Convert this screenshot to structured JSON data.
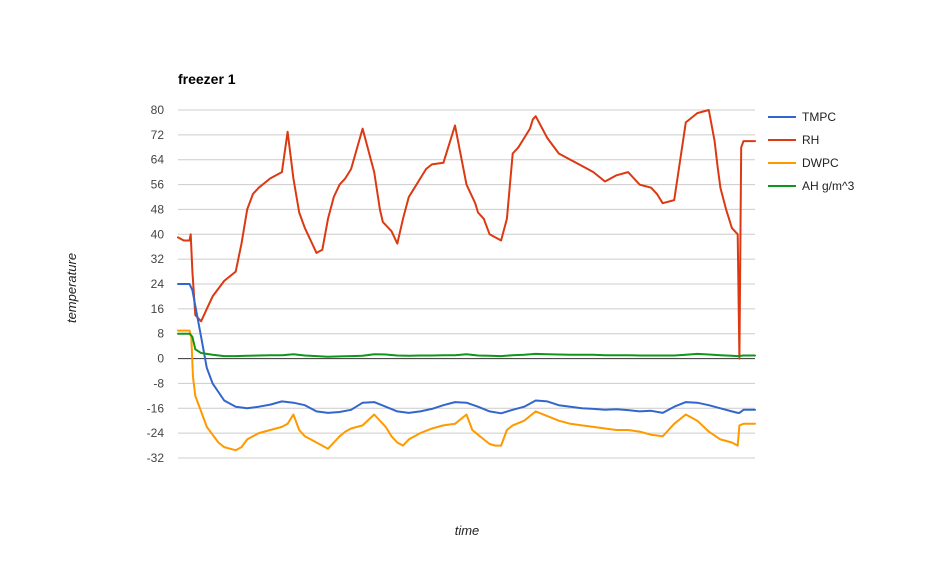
{
  "chart_data": {
    "type": "line",
    "title": "freezer 1",
    "xlabel": "time",
    "ylabel": "temperature",
    "ylim": [
      -32,
      80
    ],
    "yticks": [
      80,
      72,
      64,
      56,
      48,
      40,
      32,
      24,
      16,
      8,
      0,
      -8,
      -16,
      -24,
      -32
    ],
    "grid": true,
    "legend_position": "right",
    "series": [
      {
        "name": "TMPC",
        "color": "#3366cc",
        "x": [
          0,
          1,
          2,
          2.5,
          3,
          4,
          5,
          6,
          8,
          10,
          12,
          14,
          16,
          18,
          20,
          22,
          24,
          26,
          28,
          30,
          32,
          34,
          36,
          38,
          40,
          42,
          44,
          46,
          48,
          50,
          52,
          54,
          56,
          58,
          60,
          62,
          64,
          66,
          68,
          70,
          72,
          74,
          76,
          78,
          80,
          82,
          84,
          86,
          88,
          90,
          92,
          94,
          96,
          97,
          97.3,
          98,
          100
        ],
        "y": [
          24,
          24,
          24,
          22,
          17,
          7,
          -3,
          -8,
          -13.5,
          -15.5,
          -16,
          -15.5,
          -14.8,
          -13.8,
          -14.2,
          -15,
          -17,
          -17.5,
          -17.2,
          -16.5,
          -14.2,
          -14,
          -15.5,
          -17,
          -17.5,
          -17,
          -16.2,
          -15,
          -14,
          -14.2,
          -15.5,
          -17,
          -17.6,
          -16.5,
          -15.5,
          -13.5,
          -13.8,
          -15,
          -15.5,
          -16,
          -16.2,
          -16.5,
          -16.3,
          -16.6,
          -17,
          -16.8,
          -17.5,
          -15.5,
          -14,
          -14.2,
          -15,
          -16,
          -17,
          -17.5,
          -17.5,
          -16.5,
          -16.5
        ]
      },
      {
        "name": "RH",
        "color": "#dc3912",
        "x": [
          0,
          1,
          2,
          2.2,
          2.5,
          3,
          4,
          5,
          6,
          8,
          10,
          11,
          12,
          13,
          14,
          16,
          18,
          19,
          20,
          21,
          22,
          23,
          24,
          25,
          26,
          27,
          28,
          29,
          30,
          32,
          34,
          35,
          35.5,
          36,
          37,
          38,
          39,
          40,
          41,
          42,
          43,
          44,
          46,
          48,
          50,
          51,
          51.5,
          52,
          53,
          54,
          56,
          57,
          58,
          59,
          60,
          61,
          61.5,
          62,
          64,
          66,
          68,
          70,
          72,
          74,
          76,
          78,
          80,
          82,
          83,
          84,
          86,
          88,
          90,
          92,
          93,
          93.5,
          94,
          95,
          96,
          97,
          97.3,
          97.6,
          98,
          100
        ],
        "y": [
          39,
          38,
          38,
          40,
          28,
          14,
          12,
          16,
          20,
          25,
          28,
          37,
          48,
          53,
          55,
          58,
          60,
          73,
          58,
          47,
          42,
          38,
          34,
          35,
          45,
          52,
          56,
          58,
          61,
          74,
          60,
          48,
          44,
          43,
          41,
          37,
          45,
          52,
          55,
          58,
          61,
          62.5,
          63,
          75,
          56,
          52,
          50,
          47,
          45,
          40,
          38,
          45,
          66,
          68,
          71,
          74,
          77,
          78,
          71,
          66,
          64,
          62,
          60,
          57,
          59,
          60,
          56,
          55,
          53,
          50,
          51,
          76,
          79,
          80,
          70,
          62,
          55,
          48,
          42,
          40,
          0,
          68,
          70,
          70
        ]
      },
      {
        "name": "DWPC",
        "color": "#ff9900",
        "x": [
          0,
          1,
          2,
          2.3,
          2.6,
          3,
          4,
          5,
          6,
          7,
          8,
          9,
          10,
          11,
          12,
          14,
          16,
          18,
          19,
          20,
          21,
          22,
          24,
          26,
          27,
          28,
          29,
          30,
          32,
          34,
          36,
          37,
          38,
          39,
          40,
          42,
          44,
          46,
          48,
          50,
          51,
          52,
          53,
          54,
          55,
          56,
          57,
          58,
          60,
          62,
          64,
          66,
          68,
          70,
          72,
          74,
          76,
          78,
          80,
          82,
          84,
          86,
          88,
          90,
          92,
          94,
          96,
          97,
          97.3,
          98,
          100
        ],
        "y": [
          9,
          9,
          9,
          7,
          -6,
          -12,
          -17,
          -22,
          -24.5,
          -27,
          -28.5,
          -29,
          -29.5,
          -28.5,
          -26,
          -24,
          -23,
          -22,
          -21,
          -18,
          -23,
          -25,
          -27,
          -29,
          -27,
          -25,
          -23.5,
          -22.5,
          -21.5,
          -18,
          -22,
          -25,
          -27,
          -28,
          -26,
          -24,
          -22.5,
          -21.5,
          -21,
          -18,
          -23,
          -24.5,
          -26,
          -27.5,
          -28,
          -28,
          -23,
          -21.5,
          -20,
          -17,
          -18.5,
          -20,
          -21,
          -21.5,
          -22,
          -22.5,
          -23,
          -23,
          -23.5,
          -24.5,
          -25,
          -21,
          -18,
          -20,
          -23.5,
          -26,
          -27,
          -28,
          -21.5,
          -21,
          -21
        ]
      },
      {
        "name": "AH g/m^3",
        "color": "#109618",
        "x": [
          0,
          1,
          2,
          2.5,
          3,
          4,
          6,
          8,
          10,
          12,
          14,
          16,
          18,
          20,
          22,
          24,
          26,
          28,
          30,
          32,
          34,
          36,
          38,
          40,
          42,
          44,
          46,
          48,
          50,
          52,
          54,
          56,
          58,
          60,
          62,
          64,
          66,
          68,
          70,
          72,
          74,
          76,
          78,
          80,
          82,
          84,
          86,
          88,
          90,
          92,
          94,
          96,
          97,
          98,
          100
        ],
        "y": [
          8,
          8,
          8,
          7,
          3,
          1.8,
          1.2,
          0.8,
          0.8,
          0.9,
          1,
          1.1,
          1.1,
          1.4,
          1,
          0.8,
          0.6,
          0.7,
          0.8,
          0.9,
          1.4,
          1.3,
          1,
          0.9,
          1,
          1,
          1.1,
          1.1,
          1.4,
          1,
          0.9,
          0.8,
          1.1,
          1.2,
          1.5,
          1.4,
          1.3,
          1.2,
          1.2,
          1.2,
          1.1,
          1.1,
          1.1,
          1,
          1,
          1,
          1,
          1.2,
          1.5,
          1.3,
          1.1,
          0.9,
          0.8,
          1,
          1
        ]
      }
    ]
  }
}
